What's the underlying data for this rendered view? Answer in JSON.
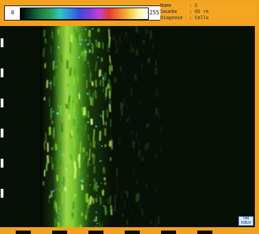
{
  "colorbar": {
    "min_label": "0",
    "max_label": "255",
    "gradient_colors": [
      "#000000",
      "#0a3d2a",
      "#1f7a3d",
      "#2d9c5a",
      "#2ec7bf",
      "#2d8fe0",
      "#3a4ed8",
      "#7c3cd9",
      "#c33fd9",
      "#e2383a",
      "#f27a2a",
      "#f6c13a",
      "#fff3a1",
      "#ffffff"
    ]
  },
  "info": {
    "rows": [
      {
        "key": "Name",
        "value": ": S"
      },
      {
        "key": "Seuebe",
        "value": ": OS re"
      },
      {
        "key": "Diagnose",
        "value": ": Cellu"
      }
    ]
  },
  "badge": {
    "line1": "TPM",
    "line2": "DUB20"
  },
  "colors": {
    "frame": "#f0a21e",
    "background": "#071006",
    "tissue_green": "#8cd62b",
    "tissue_cyan": "#27c3c7"
  }
}
